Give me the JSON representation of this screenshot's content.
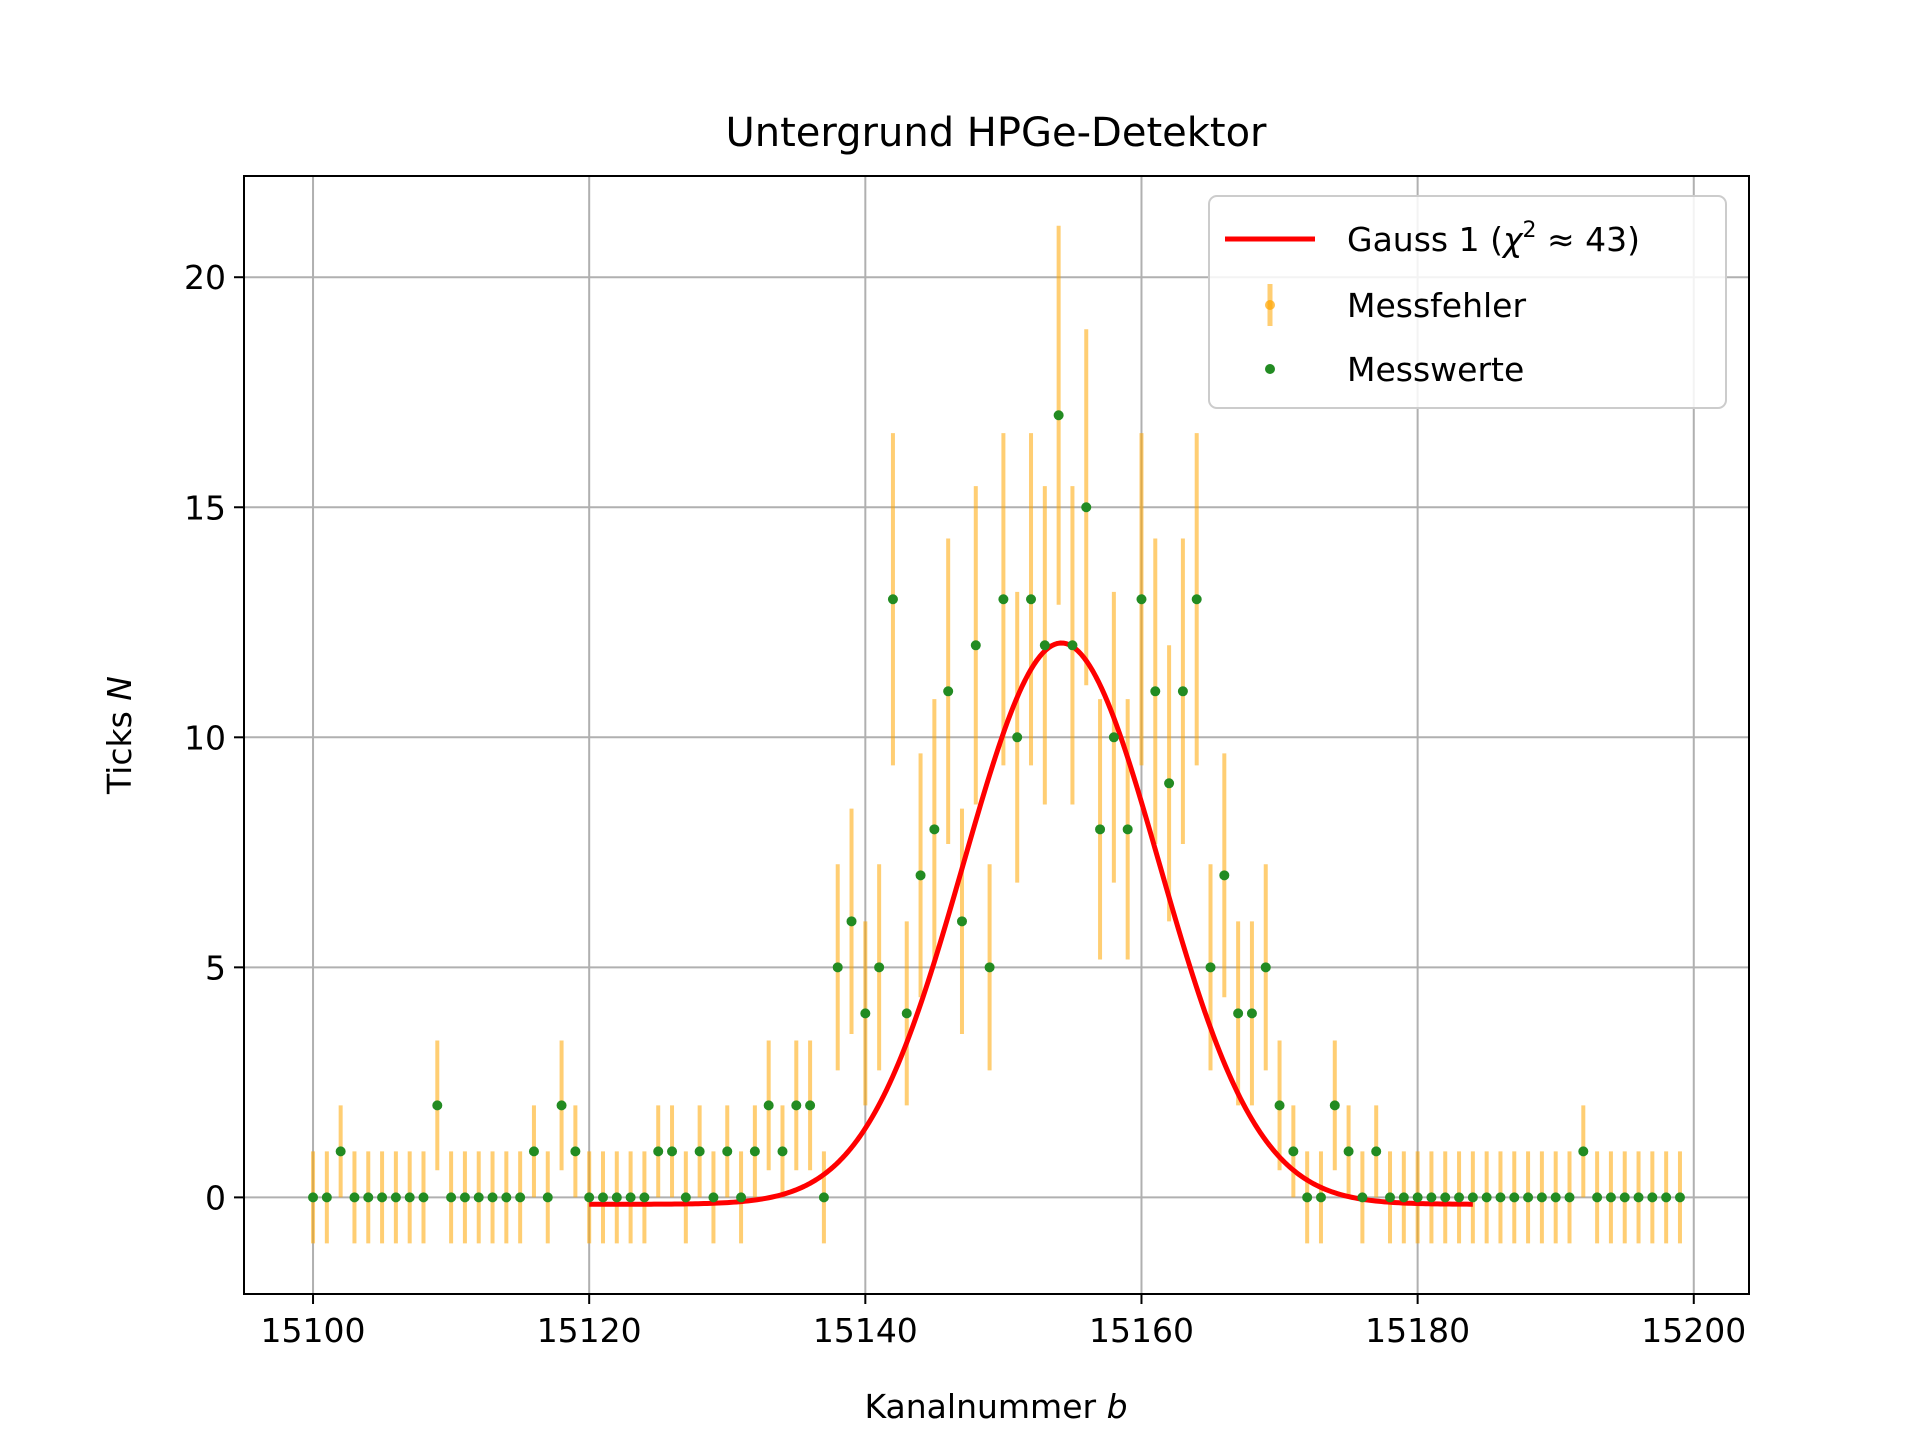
{
  "chart_data": {
    "type": "scatter",
    "title": "Untergrund HPGe-Detektor",
    "xlabel_text": "Kanalnummer ",
    "xlabel_var": "b",
    "ylabel_text": "Ticks ",
    "ylabel_var": "N",
    "xlim": [
      15095,
      15204
    ],
    "ylim": [
      -2.1,
      22.2
    ],
    "xticks": [
      15100,
      15120,
      15140,
      15160,
      15180,
      15200
    ],
    "yticks": [
      0,
      5,
      10,
      15,
      20
    ],
    "grid": true,
    "legend_position": "top-right",
    "colors": {
      "fit": "#ff0000",
      "errors": "#ffa500",
      "points": "#228b22"
    },
    "legend": {
      "fit_prefix": "Gauss 1 (",
      "fit_chi": "χ",
      "fit_sup": "2",
      "fit_suffix": " ≈ 43)",
      "errors": "Messfehler",
      "points": "Messwerte"
    },
    "series": [
      {
        "name": "Messwerte",
        "x": [
          15100,
          15101,
          15102,
          15103,
          15104,
          15105,
          15106,
          15107,
          15108,
          15109,
          15110,
          15111,
          15112,
          15113,
          15114,
          15115,
          15116,
          15117,
          15118,
          15119,
          15120,
          15121,
          15122,
          15123,
          15124,
          15125,
          15126,
          15127,
          15128,
          15129,
          15130,
          15131,
          15132,
          15133,
          15134,
          15135,
          15136,
          15137,
          15138,
          15139,
          15140,
          15141,
          15142,
          15143,
          15144,
          15145,
          15146,
          15147,
          15148,
          15149,
          15150,
          15151,
          15152,
          15153,
          15154,
          15155,
          15156,
          15157,
          15158,
          15159,
          15160,
          15161,
          15162,
          15163,
          15164,
          15165,
          15166,
          15167,
          15168,
          15169,
          15170,
          15171,
          15172,
          15173,
          15174,
          15175,
          15176,
          15177,
          15178,
          15179,
          15180,
          15181,
          15182,
          15183,
          15184,
          15185,
          15186,
          15187,
          15188,
          15189,
          15190,
          15191,
          15192,
          15193,
          15194,
          15195,
          15196,
          15197,
          15198,
          15199
        ],
        "y": [
          0,
          0,
          1,
          0,
          0,
          0,
          0,
          0,
          0,
          2,
          0,
          0,
          0,
          0,
          0,
          0,
          1,
          0,
          2,
          1,
          0,
          0,
          0,
          0,
          0,
          1,
          1,
          0,
          1,
          0,
          1,
          0,
          1,
          2,
          1,
          2,
          2,
          0,
          5,
          6,
          4,
          5,
          13,
          4,
          7,
          8,
          11,
          6,
          12,
          5,
          13,
          10,
          13,
          12,
          17,
          12,
          15,
          8,
          10,
          8,
          13,
          11,
          9,
          11,
          13,
          5,
          7,
          4,
          4,
          5,
          2,
          1,
          0,
          0,
          2,
          1,
          0,
          1,
          0,
          0,
          0,
          0,
          0,
          0,
          0,
          0,
          0,
          0,
          0,
          0,
          0,
          0,
          1,
          0,
          0,
          0,
          0,
          0,
          0,
          0
        ],
        "yerr": [
          1,
          1,
          1,
          1,
          1,
          1,
          1,
          1,
          1,
          1.41,
          1,
          1,
          1,
          1,
          1,
          1,
          1,
          1,
          1.41,
          1,
          1,
          1,
          1,
          1,
          1,
          1,
          1,
          1,
          1,
          1,
          1,
          1,
          1,
          1.41,
          1,
          1.41,
          1.41,
          1,
          2.24,
          2.45,
          2,
          2.24,
          3.61,
          2,
          2.65,
          2.83,
          3.32,
          2.45,
          3.46,
          2.24,
          3.61,
          3.16,
          3.61,
          3.46,
          4.12,
          3.46,
          3.87,
          2.83,
          3.16,
          2.83,
          3.61,
          3.32,
          3,
          3.32,
          3.61,
          2.24,
          2.65,
          2,
          2,
          2.24,
          1.41,
          1,
          1,
          1,
          1.41,
          1,
          1,
          1,
          1,
          1,
          1,
          1,
          1,
          1,
          1,
          1,
          1,
          1,
          1,
          1,
          1,
          1,
          1,
          1,
          1,
          1,
          1,
          1,
          1,
          1
        ]
      },
      {
        "name": "Gauss 1",
        "type": "line",
        "x_range": [
          15120,
          15184
        ],
        "amplitude": 12.2,
        "mean": 15154.2,
        "sigma": 7.1,
        "offset": -0.15
      }
    ]
  }
}
